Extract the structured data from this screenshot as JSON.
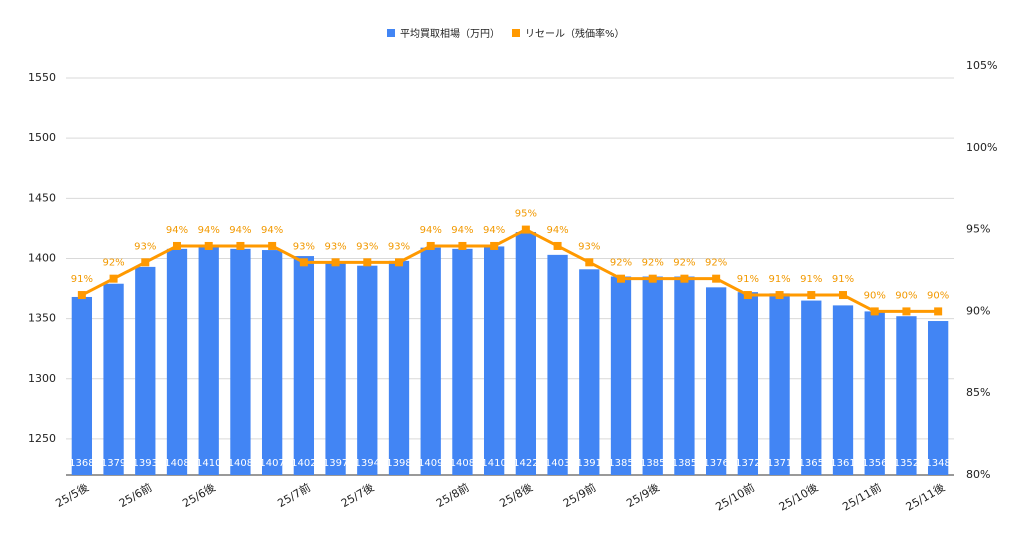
{
  "chart_data": {
    "type": "combo",
    "categories": [
      "25/5後",
      null,
      "25/6前",
      null,
      "25/6後",
      null,
      null,
      "25/7前",
      null,
      "25/7後",
      null,
      null,
      "25/8前",
      null,
      "25/8後",
      null,
      "25/9前",
      null,
      "25/9後",
      null,
      null,
      "25/10前",
      null,
      "25/10後",
      null,
      "25/11前",
      null,
      "25/11後"
    ],
    "series": [
      {
        "name": "平均買取相場（万円）",
        "type": "bar",
        "color": "#4285f4",
        "values": [
          1368,
          1379,
          1393,
          1408,
          1410,
          1408,
          1407,
          1402,
          1397,
          1394,
          1398,
          1409,
          1408,
          1410,
          1422,
          1403,
          1391,
          1385,
          1385,
          1385,
          1376,
          1372,
          1371,
          1365,
          1361,
          1356,
          1352,
          1348
        ]
      },
      {
        "name": "リセール（残価率%）",
        "type": "line",
        "axis": "y2",
        "color": "#ff9900",
        "values": [
          91,
          92,
          93,
          94,
          94,
          94,
          94,
          93,
          93,
          93,
          93,
          94,
          94,
          94,
          95,
          94,
          93,
          92,
          92,
          92,
          92,
          91,
          91,
          91,
          91,
          90,
          90,
          90
        ],
        "value_labels": [
          "91%",
          "92%",
          "93%",
          "94%",
          "94%",
          "94%",
          "94%",
          "93%",
          "93%",
          "93%",
          "93%",
          "94%",
          "94%",
          "94%",
          "95%",
          "94%",
          "93%",
          "92%",
          "92%",
          "92%",
          "92%",
          "91%",
          "91%",
          "91%",
          "91%",
          "90%",
          "90%",
          "90%"
        ]
      }
    ],
    "ylim": [
      1220,
      1560
    ],
    "yticks": [
      1250,
      1300,
      1350,
      1400,
      1450,
      1500,
      1550
    ],
    "y2lim": [
      80,
      105
    ],
    "y2ticks": [
      {
        "value": 80,
        "label": "80%"
      },
      {
        "value": 85,
        "label": "85%"
      },
      {
        "value": 90,
        "label": "90%"
      },
      {
        "value": 95,
        "label": "95%"
      },
      {
        "value": 100,
        "label": "100%"
      },
      {
        "value": 105,
        "label": "105%"
      }
    ],
    "grid": true,
    "legend": "top"
  }
}
